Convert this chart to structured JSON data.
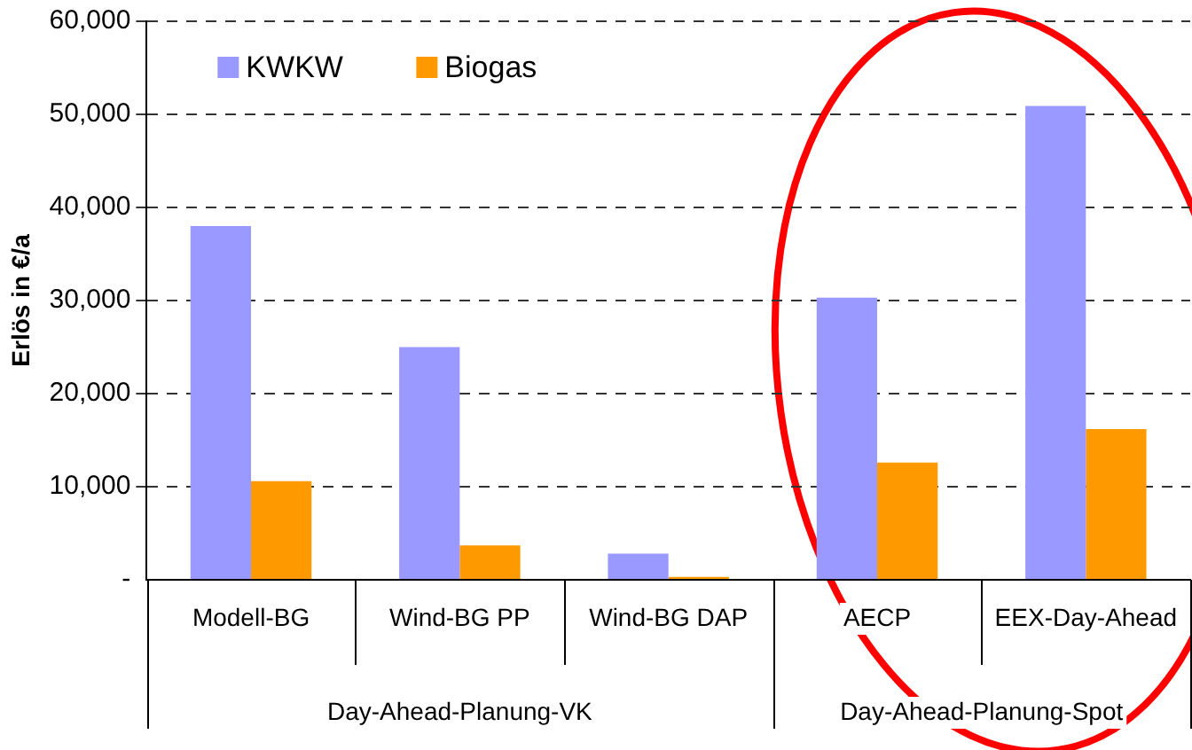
{
  "chart_data": {
    "type": "bar",
    "ylabel": "Erlös in €/a",
    "categories": [
      "Modell-BG",
      "Wind-BG PP",
      "Wind-BG DAP",
      "AECP",
      "EEX-Day-Ahead"
    ],
    "series": [
      {
        "name": "KWKW",
        "color": "#9999ff",
        "values": [
          38000,
          25000,
          2800,
          30300,
          50900
        ]
      },
      {
        "name": "Biogas",
        "color": "#ff9900",
        "values": [
          10600,
          3700,
          300,
          12600,
          16200
        ]
      }
    ],
    "ylim": [
      0,
      60000
    ],
    "yticks": [
      {
        "value": 0,
        "label": "-"
      },
      {
        "value": 10000,
        "label": "10,000"
      },
      {
        "value": 20000,
        "label": "20,000"
      },
      {
        "value": 30000,
        "label": "30,000"
      },
      {
        "value": 40000,
        "label": "40,000"
      },
      {
        "value": 50000,
        "label": "50,000"
      },
      {
        "value": 60000,
        "label": "60,000"
      }
    ],
    "grid": "y",
    "legend": "top left",
    "annotations": [
      "Day-Ahead-Planung-VK",
      "Day-Ahead-Planung-Spot"
    ]
  }
}
